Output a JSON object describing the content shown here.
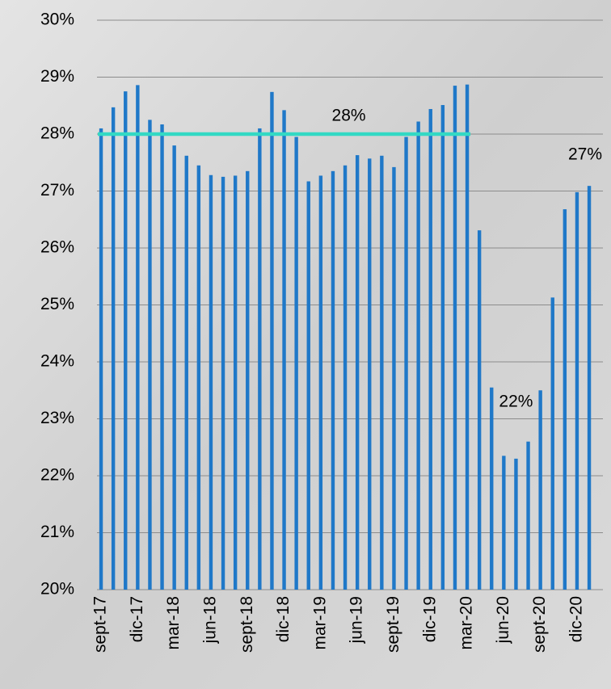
{
  "chart_data": {
    "type": "bar",
    "categories": [
      "sept-17",
      null,
      null,
      "dic-17",
      null,
      null,
      "mar-18",
      null,
      null,
      "jun-18",
      null,
      null,
      "sept-18",
      null,
      null,
      "dic-18",
      null,
      null,
      "mar-19",
      null,
      null,
      "jun-19",
      null,
      null,
      "sept-19",
      null,
      null,
      "dic-19",
      null,
      null,
      "mar-20",
      null,
      null,
      "jun-20",
      null,
      null,
      "sept-20",
      null,
      null,
      "dic-20",
      null
    ],
    "series": [
      {
        "color": "#1f78c8",
        "values": [
          28.1,
          28.47,
          28.75,
          28.86,
          28.25,
          28.17,
          27.8,
          27.62,
          27.45,
          27.28,
          27.25,
          27.27,
          27.35,
          28.1,
          28.74,
          28.42,
          27.95,
          27.17,
          27.27,
          27.35,
          27.45,
          27.63,
          27.57,
          27.62,
          27.42,
          27.95,
          28.22,
          28.44,
          28.51,
          28.85,
          28.87,
          26.31,
          23.55,
          22.35,
          22.3,
          22.6,
          23.5,
          25.13,
          26.68,
          26.98,
          27.09
        ],
        "value_labels": [
          null,
          null,
          null,
          null,
          null,
          null,
          null,
          null,
          null,
          null,
          null,
          null,
          null,
          null,
          null,
          null,
          null,
          null,
          null,
          null,
          null,
          null,
          null,
          null,
          null,
          null,
          null,
          null,
          null,
          null,
          null,
          null,
          null,
          null,
          "22%",
          null,
          null,
          null,
          null,
          null,
          "27%"
        ]
      }
    ],
    "reference_line": {
      "value": 28,
      "label": "28%",
      "color": "#33d9c4",
      "from": "sept-17",
      "to": "mar-20"
    },
    "ylim": [
      20,
      30
    ],
    "yticks": [
      {
        "value": 20,
        "label": "20%"
      },
      {
        "value": 21,
        "label": "21%"
      },
      {
        "value": 22,
        "label": "22%"
      },
      {
        "value": 23,
        "label": "23%"
      },
      {
        "value": 24,
        "label": "24%"
      },
      {
        "value": 25,
        "label": "25%"
      },
      {
        "value": 26,
        "label": "26%"
      },
      {
        "value": 27,
        "label": "27%"
      },
      {
        "value": 28,
        "label": "28%"
      },
      {
        "value": 29,
        "label": "29%"
      },
      {
        "value": 30,
        "label": "30%"
      }
    ],
    "grid": true
  }
}
